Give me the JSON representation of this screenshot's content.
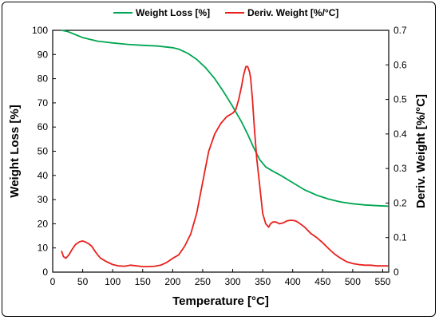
{
  "chart_data": {
    "type": "line",
    "xlabel": "Temperature [°C]",
    "ylabel_left": "Weight Loss [%]",
    "ylabel_right": "Deriv. Weight [%/°C]",
    "xlim": [
      0,
      560
    ],
    "ylim_left": [
      0,
      100
    ],
    "ylim_right": [
      0,
      0.7
    ],
    "x_ticks": [
      "0",
      "50",
      "100",
      "150",
      "200",
      "250",
      "300",
      "350",
      "400",
      "450",
      "500",
      "550"
    ],
    "y_ticks_left": [
      "0",
      "10",
      "20",
      "30",
      "40",
      "50",
      "60",
      "70",
      "80",
      "90",
      "100"
    ],
    "y_ticks_right": [
      "0",
      "0.1",
      "0.2",
      "0.3",
      "0.4",
      "0.5",
      "0.6",
      "0.7"
    ],
    "grid": false,
    "legend_position": "top",
    "series": [
      {
        "name": "Weight Loss [%]",
        "axis": "left",
        "color": "#00a651",
        "x": [
          15,
          25,
          50,
          75,
          100,
          125,
          150,
          175,
          200,
          210,
          225,
          240,
          255,
          270,
          285,
          300,
          315,
          325,
          335,
          345,
          355,
          365,
          380,
          400,
          420,
          440,
          460,
          480,
          500,
          520,
          540,
          558
        ],
        "y": [
          100,
          99.5,
          97,
          95.5,
          94.8,
          94.2,
          93.8,
          93.5,
          92.8,
          92.2,
          90.5,
          88,
          84.5,
          80,
          74.5,
          68.5,
          62,
          57,
          51.5,
          46.5,
          43.5,
          42,
          40,
          37,
          34,
          31.8,
          30.2,
          29,
          28.3,
          27.8,
          27.5,
          27.3
        ]
      },
      {
        "name": "Deriv. Weight [%/°C]",
        "axis": "right",
        "color": "#e8201c",
        "x": [
          15,
          18,
          22,
          27,
          32,
          38,
          45,
          50,
          55,
          60,
          65,
          70,
          75,
          80,
          90,
          100,
          110,
          120,
          130,
          140,
          150,
          160,
          170,
          180,
          190,
          200,
          210,
          220,
          230,
          240,
          250,
          260,
          270,
          280,
          290,
          300,
          305,
          310,
          315,
          318,
          322,
          325,
          328,
          330,
          333,
          336,
          340,
          345,
          350,
          355,
          360,
          363,
          367,
          372,
          378,
          385,
          390,
          395,
          400,
          405,
          410,
          420,
          430,
          440,
          450,
          460,
          470,
          480,
          490,
          500,
          510,
          520,
          530,
          540,
          550,
          558
        ],
        "y": [
          0.06,
          0.045,
          0.04,
          0.05,
          0.065,
          0.08,
          0.088,
          0.09,
          0.087,
          0.082,
          0.075,
          0.062,
          0.05,
          0.04,
          0.03,
          0.022,
          0.018,
          0.017,
          0.02,
          0.018,
          0.016,
          0.016,
          0.017,
          0.02,
          0.028,
          0.04,
          0.05,
          0.075,
          0.11,
          0.17,
          0.26,
          0.35,
          0.4,
          0.43,
          0.45,
          0.46,
          0.47,
          0.5,
          0.54,
          0.57,
          0.595,
          0.595,
          0.58,
          0.56,
          0.5,
          0.42,
          0.33,
          0.25,
          0.17,
          0.14,
          0.13,
          0.14,
          0.145,
          0.145,
          0.14,
          0.143,
          0.148,
          0.15,
          0.15,
          0.148,
          0.143,
          0.13,
          0.112,
          0.1,
          0.085,
          0.068,
          0.052,
          0.04,
          0.03,
          0.025,
          0.022,
          0.02,
          0.02,
          0.018,
          0.018,
          0.018
        ]
      }
    ]
  }
}
